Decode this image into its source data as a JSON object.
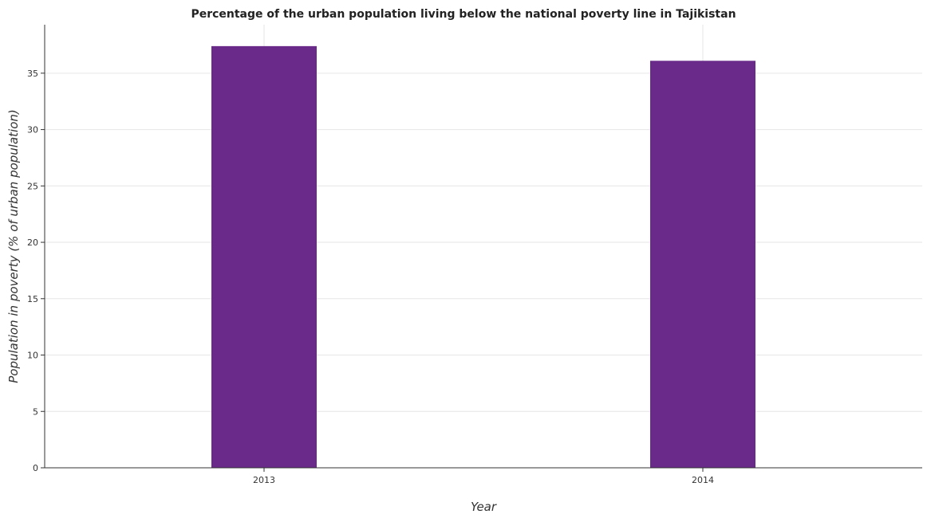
{
  "chart_data": {
    "type": "bar",
    "title": "Percentage of the urban population living below the national poverty line in Tajikistan",
    "xlabel": "Year",
    "ylabel": "Population in poverty (% of urban population)",
    "categories": [
      "2013",
      "2014"
    ],
    "values": [
      37.4,
      36.1
    ],
    "ylim": [
      0,
      39.3
    ],
    "yticks": [
      0,
      5,
      10,
      15,
      20,
      25,
      30,
      35
    ],
    "grid": true,
    "bar_color": "#6a2a8a"
  }
}
